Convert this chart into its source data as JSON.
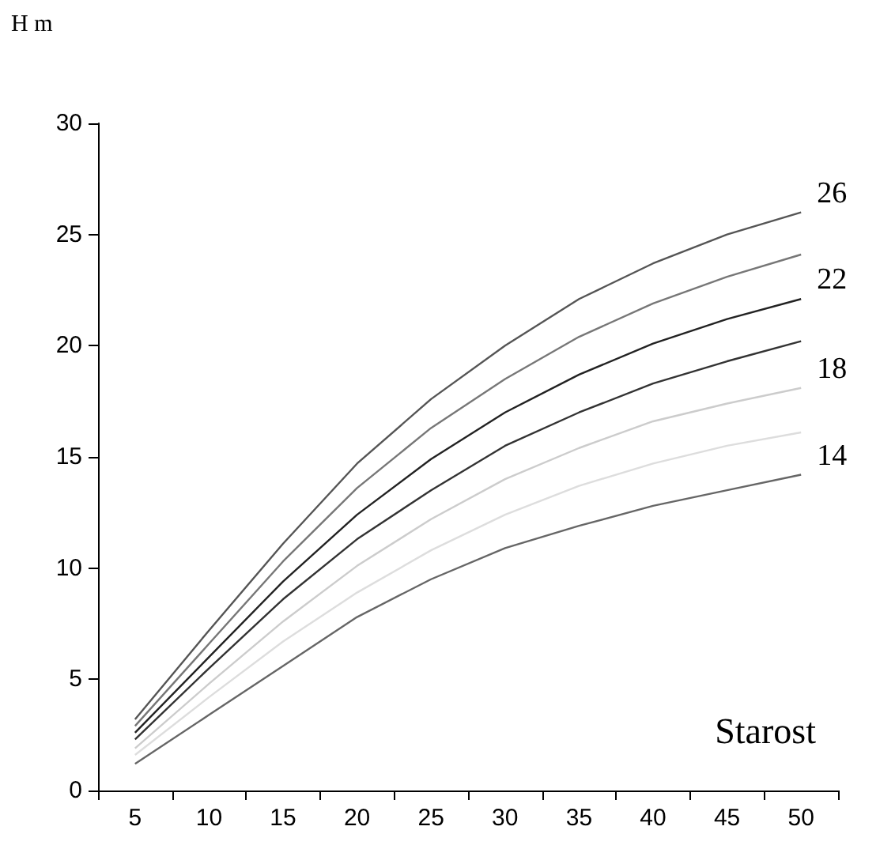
{
  "chart_data": {
    "type": "line",
    "xlabel": "Starost",
    "ylabel": "H m",
    "categories": [
      "5",
      "10",
      "15",
      "20",
      "25",
      "30",
      "35",
      "40",
      "45",
      "50"
    ],
    "ylim": [
      0,
      30
    ],
    "yticks": [
      0,
      5,
      10,
      15,
      20,
      25,
      30
    ],
    "grid": false,
    "legend": false,
    "marker": "none",
    "series": [
      {
        "name": "26",
        "color": "#555555",
        "values": [
          3.2,
          7.2,
          11.1,
          14.7,
          17.6,
          20.0,
          22.1,
          23.7,
          25.0,
          26.0
        ]
      },
      {
        "color": "#777777",
        "values": [
          2.9,
          6.6,
          10.3,
          13.6,
          16.3,
          18.5,
          20.4,
          21.9,
          23.1,
          24.1
        ]
      },
      {
        "name": "22",
        "color": "#222222",
        "values": [
          2.6,
          6.0,
          9.4,
          12.4,
          14.9,
          17.0,
          18.7,
          20.1,
          21.2,
          22.1
        ]
      },
      {
        "color": "#333333",
        "values": [
          2.3,
          5.5,
          8.6,
          11.3,
          13.5,
          15.5,
          17.0,
          18.3,
          19.3,
          20.2
        ]
      },
      {
        "name": "18",
        "color": "#cccccc",
        "values": [
          1.9,
          4.8,
          7.6,
          10.1,
          12.2,
          14.0,
          15.4,
          16.6,
          17.4,
          18.1
        ]
      },
      {
        "color": "#dddddd",
        "values": [
          1.6,
          4.2,
          6.7,
          8.9,
          10.8,
          12.4,
          13.7,
          14.7,
          15.5,
          16.1
        ]
      },
      {
        "name": "14",
        "color": "#666666",
        "values": [
          1.2,
          3.4,
          5.6,
          7.8,
          9.5,
          10.9,
          11.9,
          12.8,
          13.5,
          14.2
        ]
      }
    ]
  }
}
